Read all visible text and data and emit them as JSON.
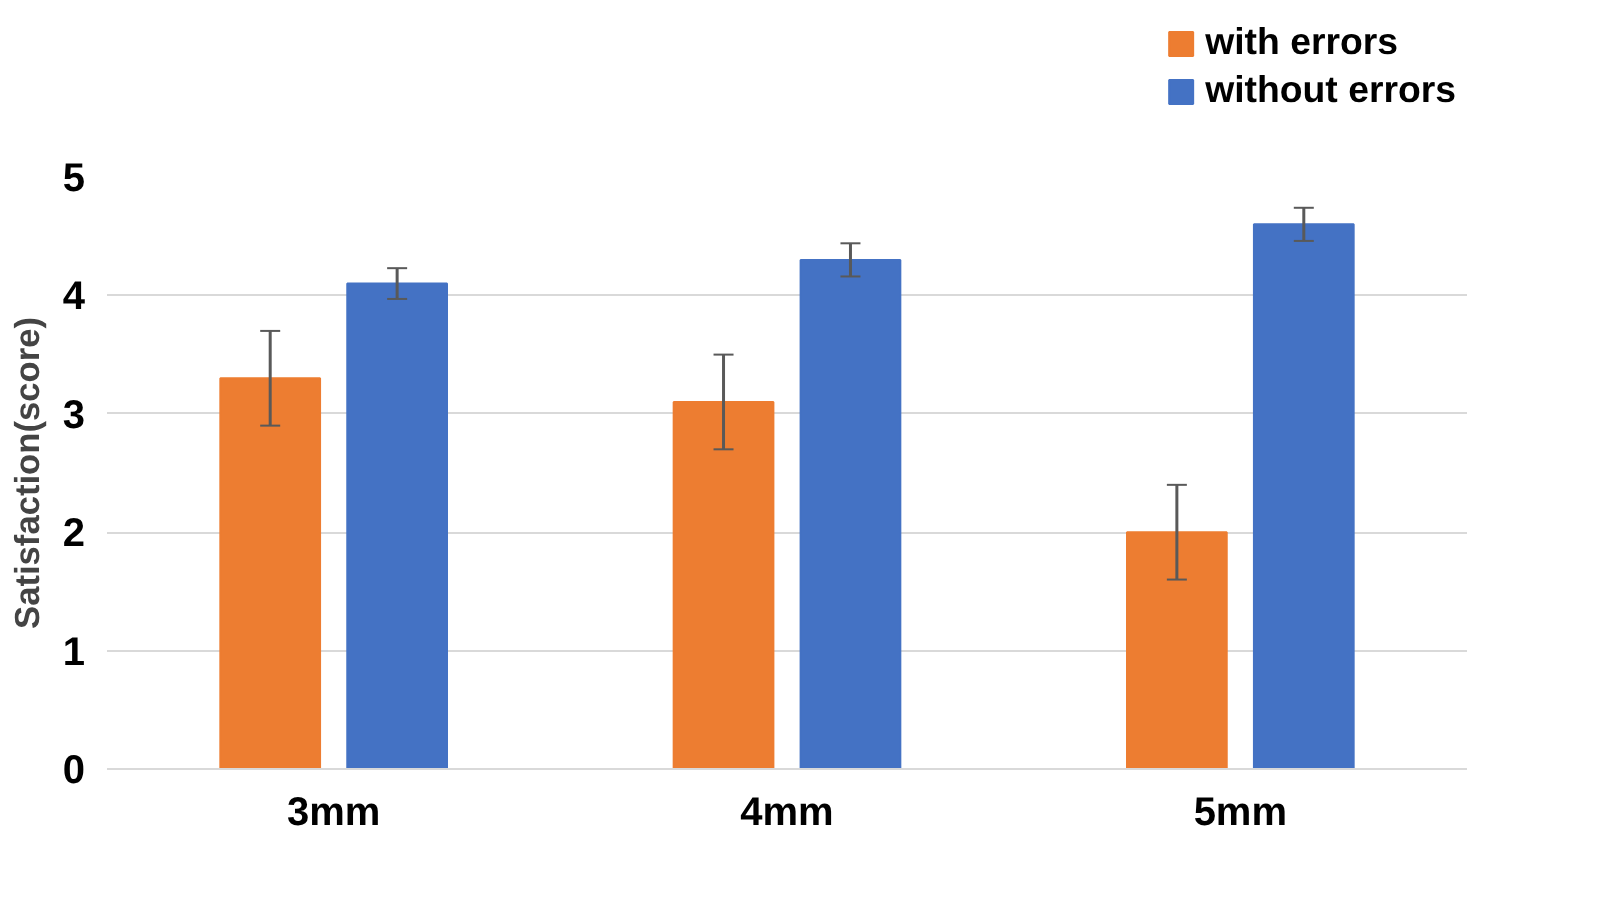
{
  "chart_data": {
    "type": "bar",
    "ylabel": "Satisfaction(score)",
    "categories": [
      "3mm",
      "4mm",
      "5mm"
    ],
    "series": [
      {
        "name": "with errors",
        "color": "#ed7d31",
        "values": [
          3.3,
          3.1,
          2.0
        ],
        "errors": [
          0.4,
          0.4,
          0.4
        ]
      },
      {
        "name": "without errors",
        "color": "#4472c4",
        "values": [
          4.1,
          4.3,
          4.6
        ],
        "errors": [
          0.13,
          0.14,
          0.14
        ]
      }
    ],
    "ylim": [
      0,
      5
    ],
    "yticks": [
      0,
      1,
      2,
      3,
      4,
      5
    ],
    "grid": "y",
    "legend": "top right"
  }
}
